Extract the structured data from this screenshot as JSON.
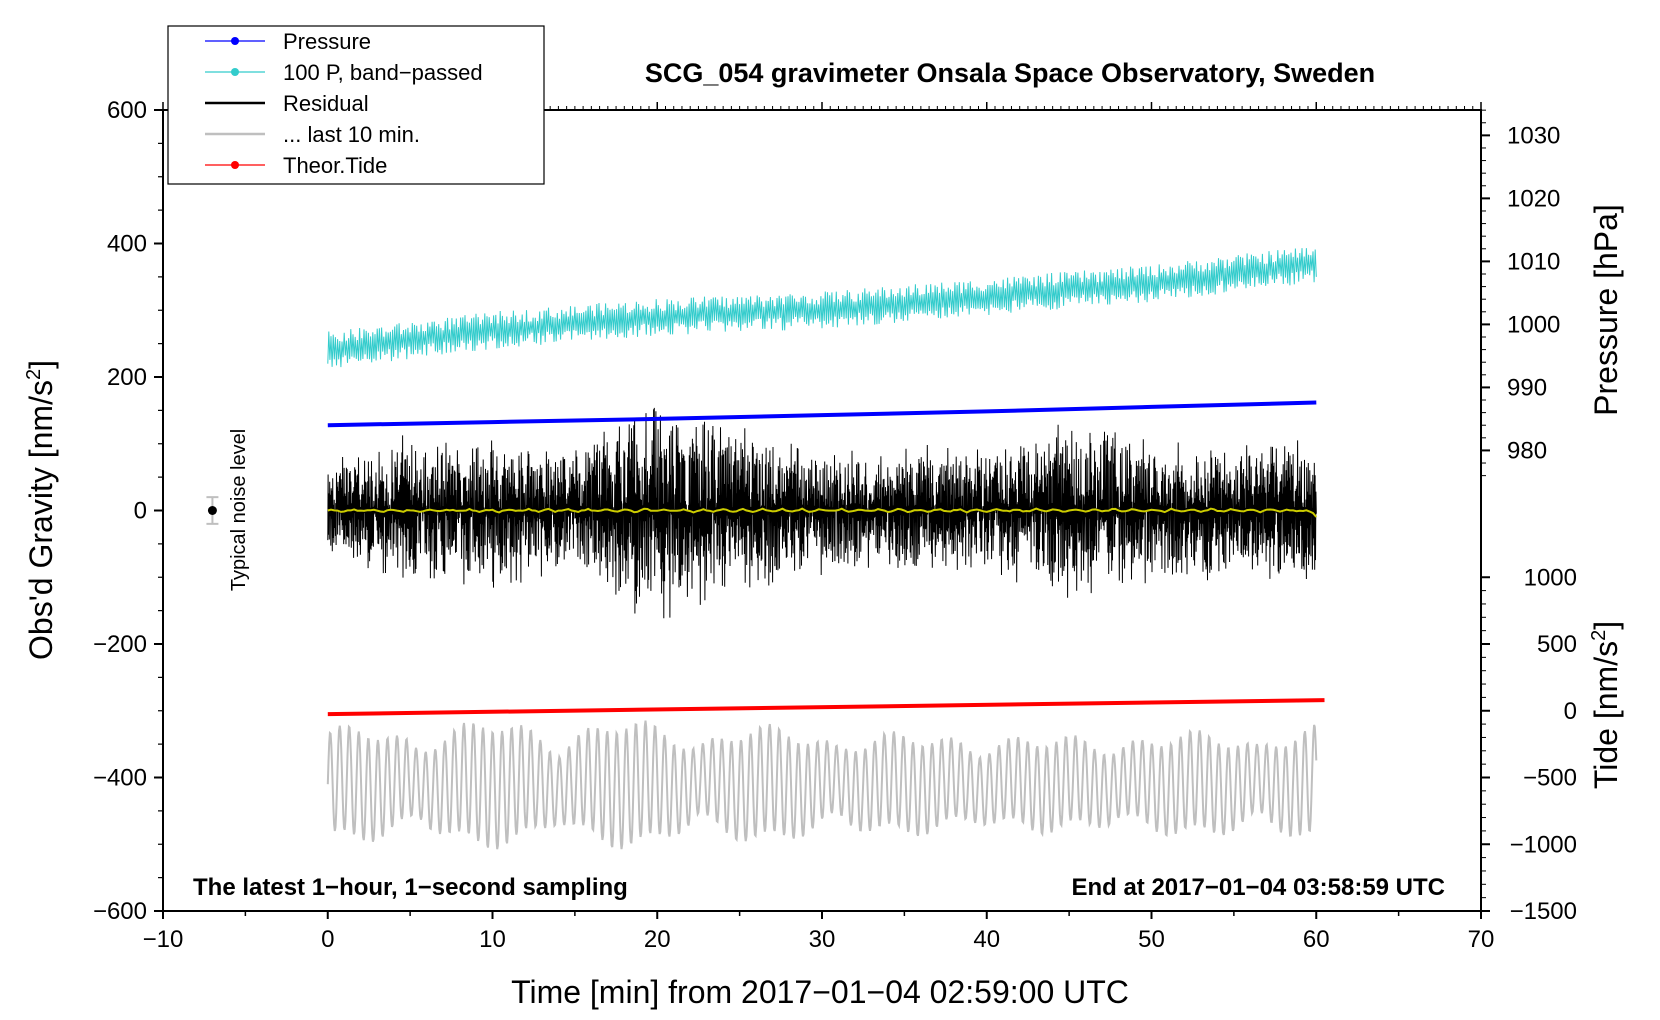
{
  "chart_data": {
    "type": "line",
    "title": "SCG_054 gravimeter Onsala Space Observatory, Sweden",
    "xlabel": "Time [min] from 2017−01−04 02:59:00 UTC",
    "ylabel_left": "Obs'd Gravity [nm/s",
    "ylabel_left_sup": "2",
    "ylabel_left_end": "]",
    "ylabel_pressure": "Pressure [hPa]",
    "ylabel_tide": "Tide [nm/s",
    "ylabel_tide_sup": "2",
    "ylabel_tide_end": "]",
    "xlim": [
      -10,
      70
    ],
    "ylim": [
      -600,
      600
    ],
    "x_ticks": [
      -10,
      0,
      10,
      20,
      30,
      40,
      50,
      60,
      70
    ],
    "x_tick_labels": [
      "−10",
      "0",
      "10",
      "20",
      "30",
      "40",
      "50",
      "60",
      "70"
    ],
    "y_ticks": [
      -600,
      -400,
      -200,
      0,
      200,
      400,
      600
    ],
    "y_tick_labels": [
      "−600",
      "−400",
      "−200",
      "0",
      "200",
      "400",
      "600"
    ],
    "pressure_axis": {
      "ticks": [
        980,
        990,
        1000,
        1010,
        1020,
        1030
      ],
      "tick_labels": [
        "980",
        "990",
        "1000",
        "1010",
        "1020",
        "1030"
      ],
      "scale": [
        [
          980,
          90
        ],
        [
          1030,
          562
        ]
      ]
    },
    "tide_axis": {
      "ticks": [
        -1500,
        -1000,
        -500,
        0,
        500,
        1000
      ],
      "tick_labels": [
        "−1500",
        "−1000",
        "−500",
        "0",
        "500",
        "1000"
      ],
      "scale": [
        [
          -1500,
          -600
        ],
        [
          1000,
          -100
        ]
      ]
    },
    "legend": {
      "placement": "top-left",
      "entries": [
        {
          "name": "Pressure",
          "color": "#0000ff",
          "marker": true
        },
        {
          "name": "100 P, band−passed",
          "color": "#33cccc",
          "marker": true
        },
        {
          "name": "Residual",
          "color": "#000000",
          "marker": false
        },
        {
          "name": "... last 10 min.",
          "color": "#bfbfbf",
          "marker": false
        },
        {
          "name": "Theor.Tide",
          "color": "#ff0000",
          "marker": true
        }
      ]
    },
    "series": [
      {
        "name": "Pressure",
        "axis": "pressure",
        "color": "#0000ff",
        "x": [
          0,
          10,
          20,
          30,
          40,
          50,
          60
        ],
        "values": [
          984.0,
          984.5,
          985.0,
          985.6,
          986.2,
          986.9,
          987.6
        ]
      },
      {
        "name": "100 P, band−passed",
        "axis": "left",
        "color": "#33cccc",
        "x": [
          0,
          10,
          20,
          30,
          40,
          50,
          60
        ],
        "values": [
          240,
          270,
          290,
          300,
          320,
          340,
          370
        ],
        "noise_amplitude": 35
      },
      {
        "name": "Residual",
        "axis": "left",
        "color": "#000000",
        "x": [
          0,
          5,
          10,
          15,
          20,
          25,
          30,
          35,
          40,
          45,
          50,
          55,
          60
        ],
        "values": [
          0,
          0,
          0,
          0,
          0,
          0,
          0,
          0,
          0,
          0,
          0,
          0,
          0
        ],
        "envelope": [
          80,
          110,
          120,
          100,
          180,
          130,
          90,
          100,
          95,
          140,
          110,
          115,
          110
        ]
      },
      {
        "name": "Residual smoothed",
        "axis": "left",
        "color": "#cccc00",
        "x": [
          0,
          30,
          59.5,
          60
        ],
        "values": [
          0,
          0,
          0,
          -8
        ]
      },
      {
        "name": "... last 10 min.",
        "axis": "left",
        "color": "#bfbfbf",
        "x_range": [
          0,
          60
        ],
        "center": -410,
        "amplitude": 90
      },
      {
        "name": "Theor.Tide",
        "axis": "tide",
        "color": "#ff0000",
        "x": [
          0,
          60.5
        ],
        "values": [
          -25,
          80
        ]
      }
    ],
    "noise_level": {
      "x": -7,
      "y": 0,
      "err": 20,
      "label": "Typical noise level"
    },
    "annotations": {
      "bottom_left": "The latest 1−hour, 1−second sampling",
      "bottom_right": "End at 2017−01−04 03:58:59 UTC"
    }
  }
}
